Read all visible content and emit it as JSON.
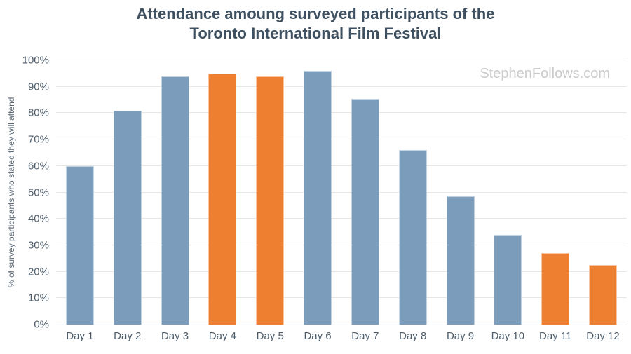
{
  "title": {
    "line1": "Attendance amoung surveyed participants of the",
    "line2": "Toronto International Film Festival"
  },
  "watermark": "StephenFollows.com",
  "colors": {
    "bar_default": "#7b9cba",
    "bar_highlight": "#ee7f31",
    "title_text": "#3f5160",
    "axis_text": "#4e5d6b",
    "gridline": "#e6e6e6",
    "axis_line": "#ccd1d6",
    "watermark_text": "#cbcbcb"
  },
  "chart_data": {
    "type": "bar",
    "title": "Attendance amoung surveyed participants of the Toronto International Film Festival",
    "categories": [
      "Day 1",
      "Day 2",
      "Day 3",
      "Day 4",
      "Day 5",
      "Day 6",
      "Day 7",
      "Day 8",
      "Day 9",
      "Day 10",
      "Day 11",
      "Day 12"
    ],
    "values": [
      60,
      81,
      94,
      95,
      94,
      96,
      85.5,
      66,
      48.5,
      34,
      27,
      22.5
    ],
    "highlight": [
      false,
      false,
      false,
      true,
      true,
      false,
      false,
      false,
      false,
      false,
      true,
      true
    ],
    "xlabel": "",
    "ylabel": "% of survey participants who stated they will attend",
    "ylim": [
      0,
      100
    ],
    "ytick_step": 10,
    "yticks": [
      "0%",
      "10%",
      "20%",
      "30%",
      "40%",
      "50%",
      "60%",
      "70%",
      "80%",
      "90%",
      "100%"
    ],
    "grid": true,
    "legend": "none"
  }
}
